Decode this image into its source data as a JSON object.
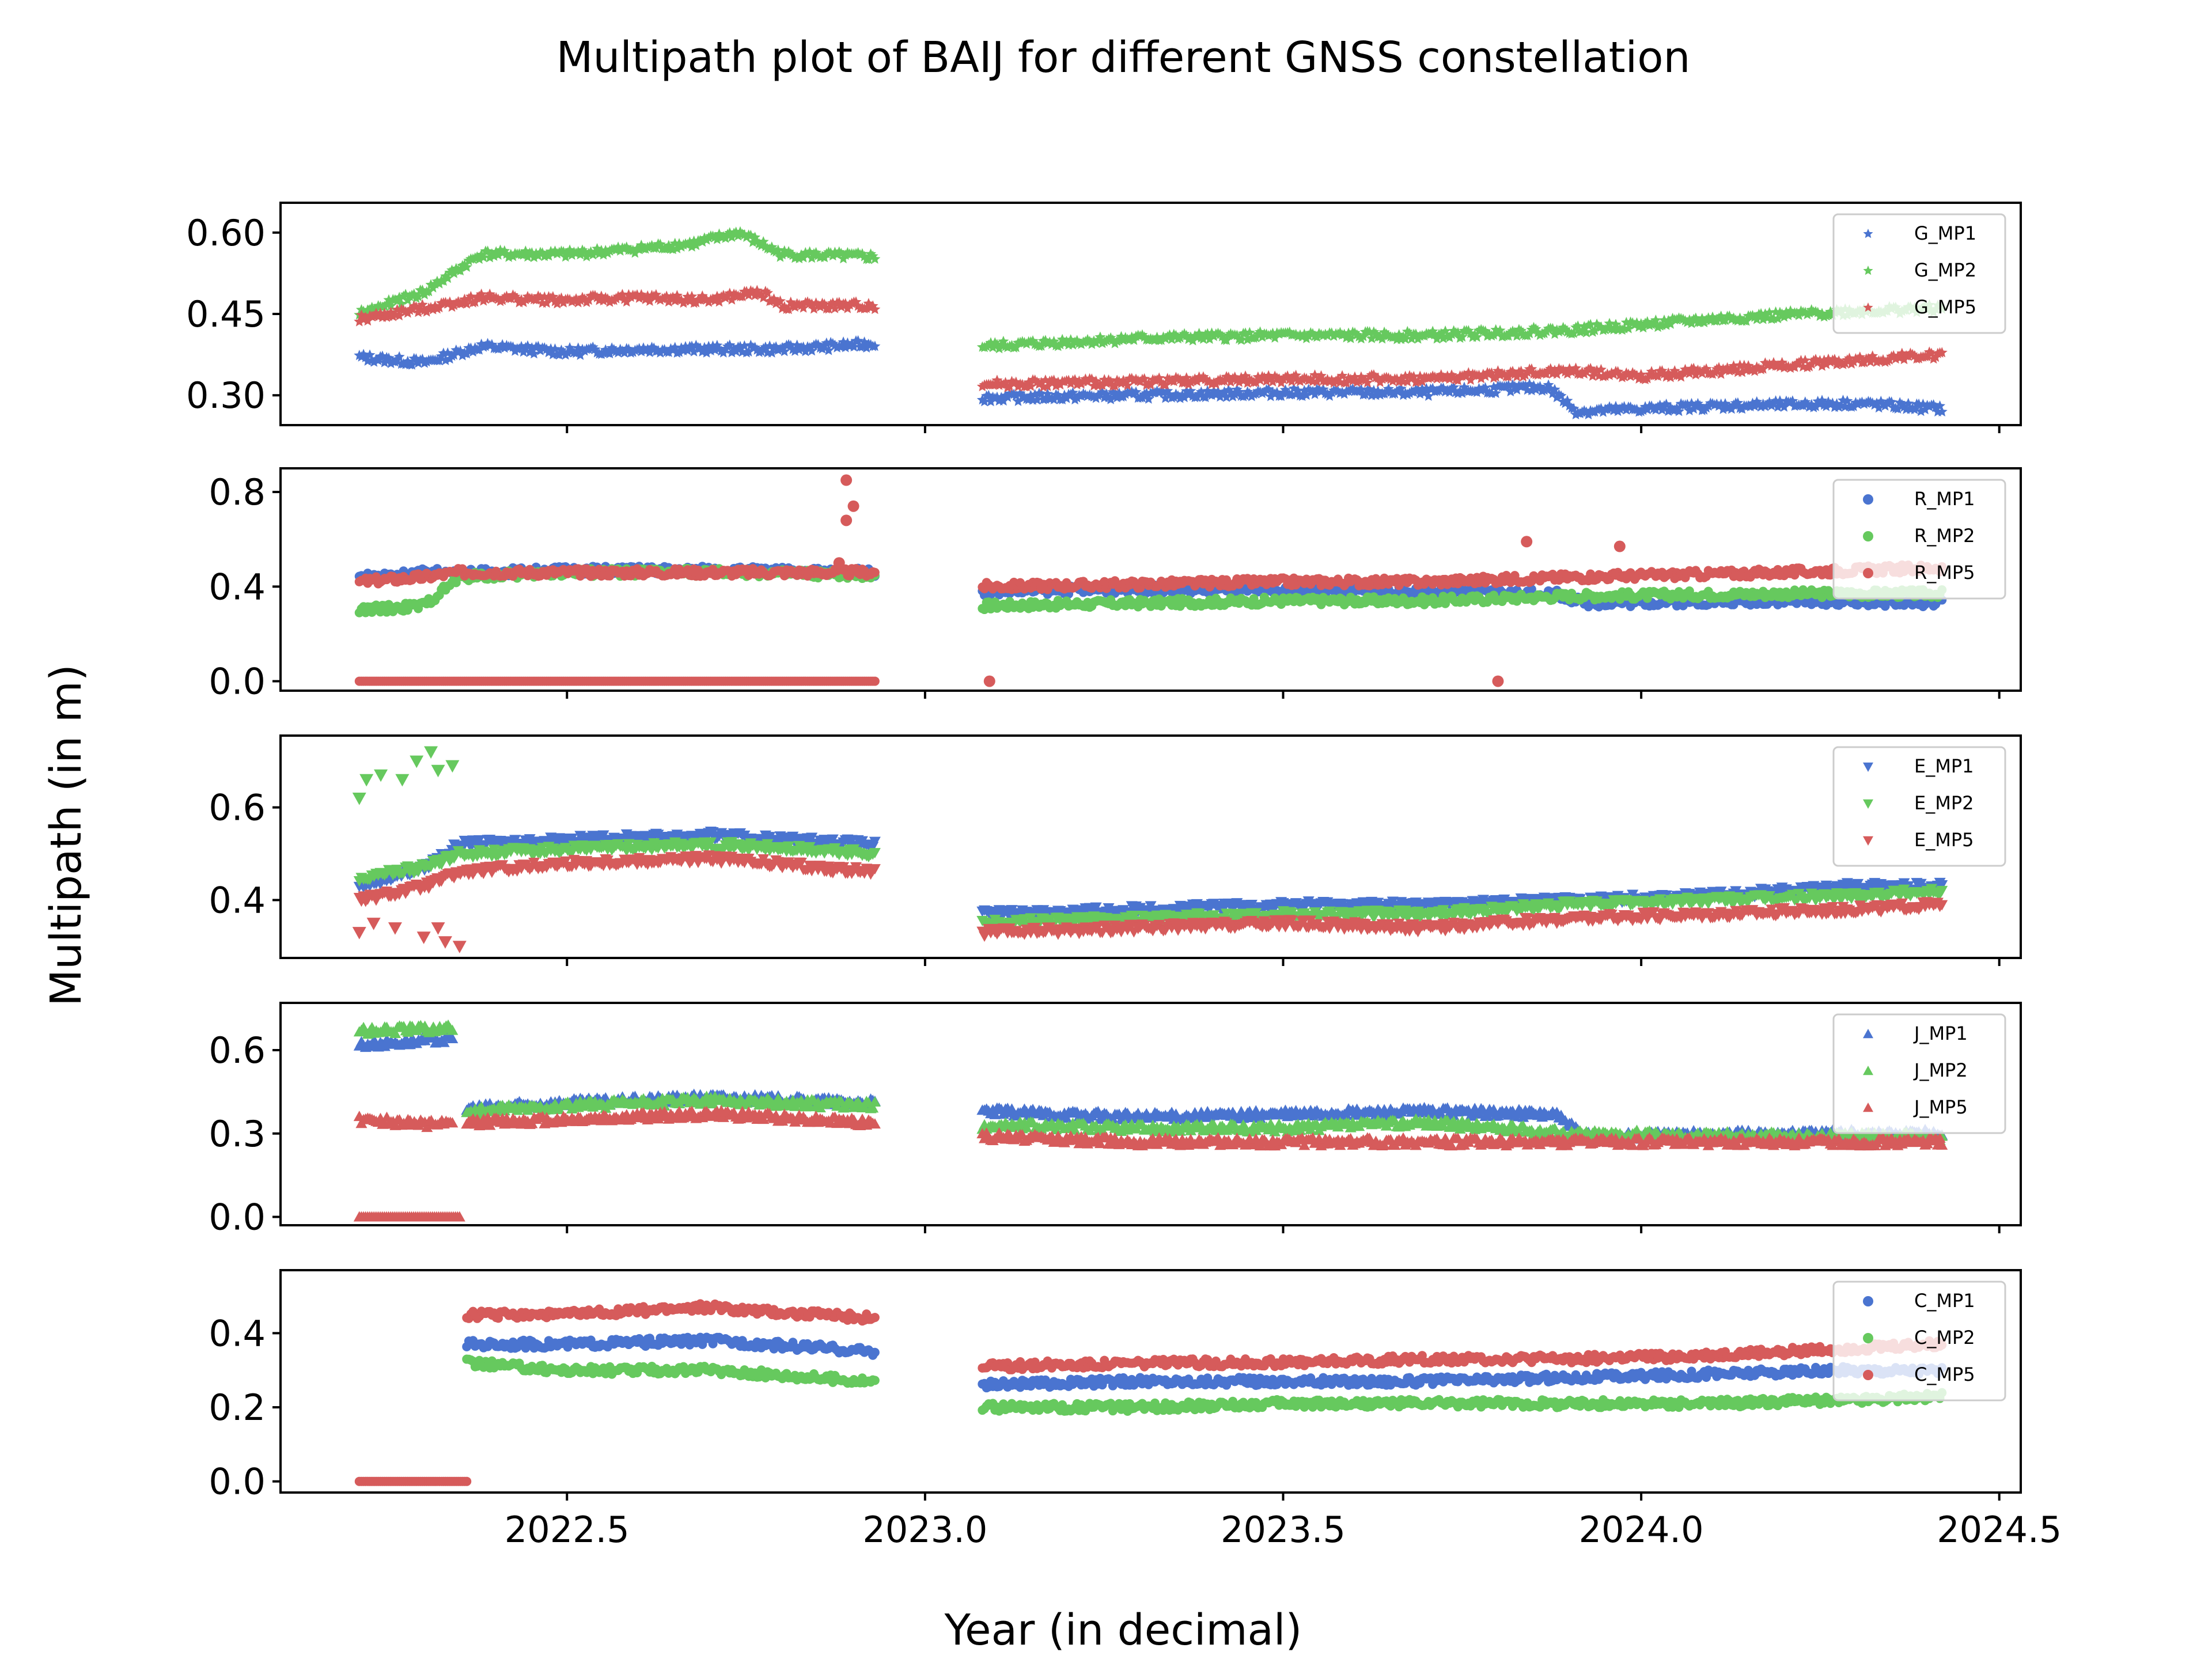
{
  "title": "Multipath plot of BAIJ for different GNSS constellation",
  "xlabel": "Year (in decimal)",
  "ylabel": "Multipath (in m)",
  "colors": {
    "MP1": "#4a74d0",
    "MP2": "#66c95e",
    "MP5": "#d65b5b"
  },
  "chart_data": [
    {
      "type": "scatter",
      "constellation": "G",
      "marker": "star",
      "xlim": [
        2022.1,
        2024.53
      ],
      "ylim": [
        0.245,
        0.655
      ],
      "yticks": [
        0.3,
        0.45,
        0.6
      ],
      "ytick_labels": [
        "0.30",
        "0.45",
        "0.60"
      ],
      "series": [
        {
          "name": "G_MP1",
          "color": "#4a74d0",
          "segments": [
            {
              "x": [
                2022.21,
                2022.3,
                2022.38,
                2022.5,
                2022.6,
                2022.7,
                2022.8,
                2022.93
              ],
              "y": [
                0.37,
                0.36,
                0.39,
                0.38,
                0.385,
                0.385,
                0.385,
                0.395
              ]
            },
            {
              "x": [
                2023.08,
                2023.3,
                2023.5,
                2023.7,
                2023.87,
                2023.91,
                2024.1,
                2024.3,
                2024.42
              ],
              "y": [
                0.295,
                0.3,
                0.305,
                0.305,
                0.315,
                0.27,
                0.28,
                0.285,
                0.275
              ]
            }
          ]
        },
        {
          "name": "G_MP2",
          "color": "#66c95e",
          "segments": [
            {
              "x": [
                2022.21,
                2022.3,
                2022.38,
                2022.5,
                2022.6,
                2022.68,
                2022.74,
                2022.8,
                2022.93
              ],
              "y": [
                0.45,
                0.49,
                0.56,
                0.56,
                0.57,
                0.58,
                0.6,
                0.56,
                0.555
              ]
            },
            {
              "x": [
                2023.08,
                2023.3,
                2023.5,
                2023.7,
                2023.9,
                2024.1,
                2024.3,
                2024.42
              ],
              "y": [
                0.39,
                0.405,
                0.41,
                0.41,
                0.42,
                0.44,
                0.455,
                0.46
              ]
            }
          ]
        },
        {
          "name": "G_MP5",
          "color": "#d65b5b",
          "segments": [
            {
              "x": [
                2022.21,
                2022.3,
                2022.38,
                2022.5,
                2022.6,
                2022.7,
                2022.77,
                2022.8,
                2022.93
              ],
              "y": [
                0.44,
                0.46,
                0.48,
                0.475,
                0.48,
                0.475,
                0.49,
                0.465,
                0.465
              ]
            },
            {
              "x": [
                2023.08,
                2023.3,
                2023.5,
                2023.7,
                2023.9,
                2024.0,
                2024.2,
                2024.42
              ],
              "y": [
                0.32,
                0.325,
                0.33,
                0.33,
                0.345,
                0.335,
                0.355,
                0.375
              ]
            }
          ]
        }
      ]
    },
    {
      "type": "scatter",
      "constellation": "R",
      "marker": "circle",
      "xlim": [
        2022.1,
        2024.53
      ],
      "ylim": [
        -0.04,
        0.9
      ],
      "yticks": [
        0.0,
        0.4,
        0.8
      ],
      "ytick_labels": [
        "0.0",
        "0.4",
        "0.8"
      ],
      "series": [
        {
          "name": "R_MP1",
          "color": "#4a74d0",
          "segments": [
            {
              "x": [
                2022.21,
                2022.3,
                2022.38,
                2022.5,
                2022.7,
                2022.93
              ],
              "y": [
                0.44,
                0.46,
                0.46,
                0.47,
                0.47,
                0.46
              ]
            },
            {
              "x": [
                2023.08,
                2023.3,
                2023.5,
                2023.7,
                2023.88,
                2023.92,
                2024.2,
                2024.42
              ],
              "y": [
                0.38,
                0.39,
                0.38,
                0.38,
                0.37,
                0.33,
                0.34,
                0.33
              ]
            }
          ]
        },
        {
          "name": "R_MP2",
          "color": "#66c95e",
          "segments": [
            {
              "x": [
                2022.21,
                2022.3,
                2022.35,
                2022.5,
                2022.7,
                2022.93
              ],
              "y": [
                0.3,
                0.32,
                0.44,
                0.46,
                0.46,
                0.45
              ]
            },
            {
              "x": [
                2023.08,
                2023.3,
                2023.5,
                2023.7,
                2023.9,
                2024.2,
                2024.42
              ],
              "y": [
                0.32,
                0.33,
                0.34,
                0.34,
                0.36,
                0.37,
                0.37
              ]
            }
          ]
        },
        {
          "name": "R_MP5",
          "color": "#d65b5b",
          "segments": [
            {
              "x": [
                2022.21,
                2022.3,
                2022.35,
                2022.5,
                2022.7,
                2022.93
              ],
              "y": [
                0.42,
                0.44,
                0.46,
                0.46,
                0.46,
                0.46
              ]
            },
            {
              "x": [
                2023.08,
                2023.3,
                2023.5,
                2023.7,
                2023.9,
                2024.2,
                2024.42
              ],
              "y": [
                0.4,
                0.41,
                0.42,
                0.42,
                0.44,
                0.46,
                0.48
              ]
            }
          ],
          "zero_band": {
            "x": [
              2022.21,
              2022.93
            ],
            "y": 0.0
          },
          "extra_points": {
            "x": [
              2022.89,
              2022.9,
              2022.89,
              2022.88,
              2023.09,
              2023.8,
              2023.84,
              2023.97
            ],
            "y": [
              0.85,
              0.74,
              0.68,
              0.5,
              0.0,
              0.0,
              0.59,
              0.57
            ]
          }
        }
      ]
    },
    {
      "type": "scatter",
      "constellation": "E",
      "marker": "triangle-down",
      "xlim": [
        2022.1,
        2024.53
      ],
      "ylim": [
        0.275,
        0.755
      ],
      "yticks": [
        0.4,
        0.6
      ],
      "ytick_labels": [
        "0.4",
        "0.6"
      ],
      "series": [
        {
          "name": "E_MP1",
          "color": "#4a74d0",
          "segments": [
            {
              "x": [
                2022.21,
                2022.3,
                2022.35,
                2022.5,
                2022.7,
                2022.93
              ],
              "y": [
                0.43,
                0.47,
                0.52,
                0.53,
                0.54,
                0.52
              ]
            },
            {
              "x": [
                2023.08,
                2023.3,
                2023.5,
                2023.7,
                2023.9,
                2024.1,
                2024.3,
                2024.42
              ],
              "y": [
                0.37,
                0.38,
                0.39,
                0.39,
                0.4,
                0.41,
                0.43,
                0.43
              ]
            }
          ]
        },
        {
          "name": "E_MP2",
          "color": "#66c95e",
          "segments": [
            {
              "x": [
                2022.21,
                2022.3,
                2022.35,
                2022.5,
                2022.7,
                2022.93
              ],
              "y": [
                0.45,
                0.47,
                0.5,
                0.51,
                0.52,
                0.5
              ]
            },
            {
              "x": [
                2023.08,
                2023.3,
                2023.5,
                2023.7,
                2023.9,
                2024.1,
                2024.3,
                2024.42
              ],
              "y": [
                0.35,
                0.36,
                0.37,
                0.37,
                0.39,
                0.4,
                0.41,
                0.42
              ]
            }
          ],
          "extra_points": {
            "x": [
              2022.21,
              2022.22,
              2022.24,
              2022.27,
              2022.29,
              2022.31,
              2022.32,
              2022.34
            ],
            "y": [
              0.62,
              0.66,
              0.67,
              0.66,
              0.7,
              0.72,
              0.68,
              0.69
            ]
          }
        },
        {
          "name": "E_MP5",
          "color": "#d65b5b",
          "segments": [
            {
              "x": [
                2022.21,
                2022.3,
                2022.35,
                2022.5,
                2022.7,
                2022.93
              ],
              "y": [
                0.4,
                0.43,
                0.46,
                0.48,
                0.49,
                0.46
              ]
            },
            {
              "x": [
                2023.08,
                2023.3,
                2023.5,
                2023.7,
                2023.9,
                2024.1,
                2024.3,
                2024.42
              ],
              "y": [
                0.33,
                0.34,
                0.35,
                0.34,
                0.36,
                0.37,
                0.38,
                0.39
              ]
            }
          ],
          "extra_points": {
            "x": [
              2022.21,
              2022.23,
              2022.26,
              2022.3,
              2022.32,
              2022.33,
              2022.35
            ],
            "y": [
              0.33,
              0.35,
              0.34,
              0.32,
              0.34,
              0.31,
              0.3
            ]
          }
        }
      ]
    },
    {
      "type": "scatter",
      "constellation": "J",
      "marker": "triangle-up",
      "xlim": [
        2022.1,
        2024.53
      ],
      "ylim": [
        -0.03,
        0.77
      ],
      "yticks": [
        0.0,
        0.3,
        0.6
      ],
      "ytick_labels": [
        "0.0",
        "0.3",
        "0.6"
      ],
      "series": [
        {
          "name": "J_MP1",
          "color": "#4a74d0",
          "segments": [
            {
              "x": [
                2022.21,
                2022.34
              ],
              "y": [
                0.62,
                0.64
              ]
            },
            {
              "x": [
                2022.36,
                2022.5,
                2022.7,
                2022.93
              ],
              "y": [
                0.39,
                0.41,
                0.43,
                0.41
              ]
            },
            {
              "x": [
                2023.08,
                2023.3,
                2023.5,
                2023.7,
                2023.88,
                2023.92,
                2024.2,
                2024.42
              ],
              "y": [
                0.38,
                0.36,
                0.37,
                0.38,
                0.37,
                0.29,
                0.3,
                0.3
              ]
            }
          ]
        },
        {
          "name": "J_MP2",
          "color": "#66c95e",
          "segments": [
            {
              "x": [
                2022.21,
                2022.34
              ],
              "y": [
                0.67,
                0.68
              ]
            },
            {
              "x": [
                2022.36,
                2022.5,
                2022.7,
                2022.93
              ],
              "y": [
                0.38,
                0.4,
                0.42,
                0.4
              ]
            },
            {
              "x": [
                2023.08,
                2023.3,
                2023.5,
                2023.7,
                2023.9,
                2024.2,
                2024.42
              ],
              "y": [
                0.33,
                0.32,
                0.32,
                0.34,
                0.3,
                0.29,
                0.29
              ]
            }
          ]
        },
        {
          "name": "J_MP5",
          "color": "#d65b5b",
          "segments": [
            {
              "x": [
                2022.21,
                2022.34
              ],
              "y": [
                0.35,
                0.33
              ]
            },
            {
              "x": [
                2022.36,
                2022.5,
                2022.7,
                2022.93
              ],
              "y": [
                0.34,
                0.35,
                0.37,
                0.34
              ]
            },
            {
              "x": [
                2023.08,
                2023.3,
                2023.5,
                2023.7,
                2023.9,
                2024.2,
                2024.42
              ],
              "y": [
                0.29,
                0.27,
                0.27,
                0.27,
                0.27,
                0.27,
                0.27
              ]
            }
          ],
          "zero_band": {
            "x": [
              2022.21,
              2022.35
            ],
            "y": 0.0
          }
        }
      ]
    },
    {
      "type": "scatter",
      "constellation": "C",
      "marker": "circle",
      "xlim": [
        2022.1,
        2024.53
      ],
      "ylim": [
        -0.03,
        0.57
      ],
      "yticks": [
        0.0,
        0.2,
        0.4
      ],
      "ytick_labels": [
        "0.0",
        "0.2",
        "0.4"
      ],
      "xticks": [
        2022.5,
        2023.0,
        2023.5,
        2024.0,
        2024.5
      ],
      "xtick_labels": [
        "2022.5",
        "2023.0",
        "2023.5",
        "2024.0",
        "2024.5"
      ],
      "series": [
        {
          "name": "C_MP1",
          "color": "#4a74d0",
          "segments": [
            {
              "x": [
                2022.36,
                2022.5,
                2022.7,
                2022.93
              ],
              "y": [
                0.37,
                0.37,
                0.38,
                0.35
              ]
            },
            {
              "x": [
                2023.08,
                2023.3,
                2023.5,
                2023.7,
                2023.9,
                2024.1,
                2024.3,
                2024.42
              ],
              "y": [
                0.26,
                0.27,
                0.27,
                0.27,
                0.28,
                0.29,
                0.3,
                0.3
              ]
            }
          ]
        },
        {
          "name": "C_MP2",
          "color": "#66c95e",
          "segments": [
            {
              "x": [
                2022.36,
                2022.5,
                2022.7,
                2022.93
              ],
              "y": [
                0.32,
                0.3,
                0.3,
                0.27
              ]
            },
            {
              "x": [
                2023.08,
                2023.3,
                2023.5,
                2023.7,
                2023.9,
                2024.1,
                2024.3,
                2024.42
              ],
              "y": [
                0.2,
                0.2,
                0.21,
                0.21,
                0.21,
                0.21,
                0.22,
                0.23
              ]
            }
          ]
        },
        {
          "name": "C_MP5",
          "color": "#d65b5b",
          "segments": [
            {
              "x": [
                2022.36,
                2022.5,
                2022.7,
                2022.93
              ],
              "y": [
                0.45,
                0.45,
                0.47,
                0.44
              ]
            },
            {
              "x": [
                2023.08,
                2023.3,
                2023.5,
                2023.7,
                2023.9,
                2024.1,
                2024.3,
                2024.42
              ],
              "y": [
                0.31,
                0.32,
                0.32,
                0.33,
                0.33,
                0.34,
                0.36,
                0.37
              ]
            }
          ],
          "zero_band": {
            "x": [
              2022.21,
              2022.36
            ],
            "y": 0.0
          }
        }
      ]
    }
  ]
}
